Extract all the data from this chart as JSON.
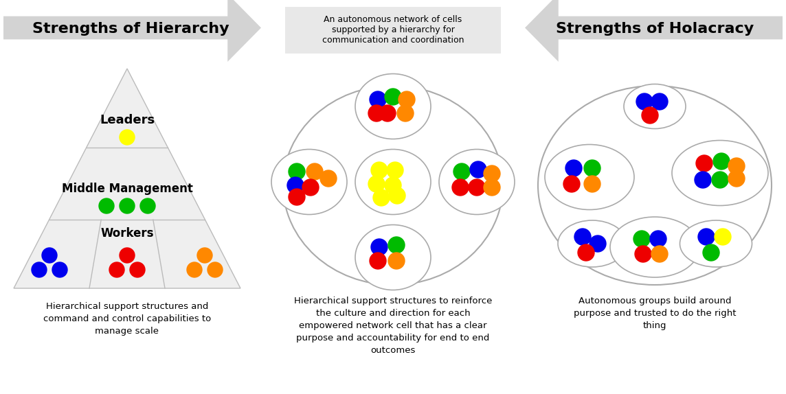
{
  "bg_color": "#ffffff",
  "arrow_color": "#d3d3d3",
  "pyramid_color": "#efefef",
  "pyramid_edge": "#bbbbbb",
  "circle_edge": "#aaaaaa",
  "title1": "Strengths of Hierarchy",
  "title2": "Strengths of Holacracy",
  "center_label": "An autonomous network of cells\nsupported by a hierarchy for\ncommunication and coordination",
  "bottom1": "Hierarchical support structures and\ncommand and control capabilities to\nmanage scale",
  "bottom2": "Hierarchical support structures to reinforce\nthe culture and direction for each\nempowered network cell that has a clear\npurpose and accountability for end to end\noutcomes",
  "bottom3": "Autonomous groups build around\npurpose and trusted to do the right\nthing",
  "pyramid_labels": [
    "Leaders",
    "Middle Management",
    "Workers"
  ],
  "blue": "#0000ee",
  "red": "#ee0000",
  "green": "#00bb00",
  "yellow": "#ffff00",
  "orange": "#ff8800"
}
